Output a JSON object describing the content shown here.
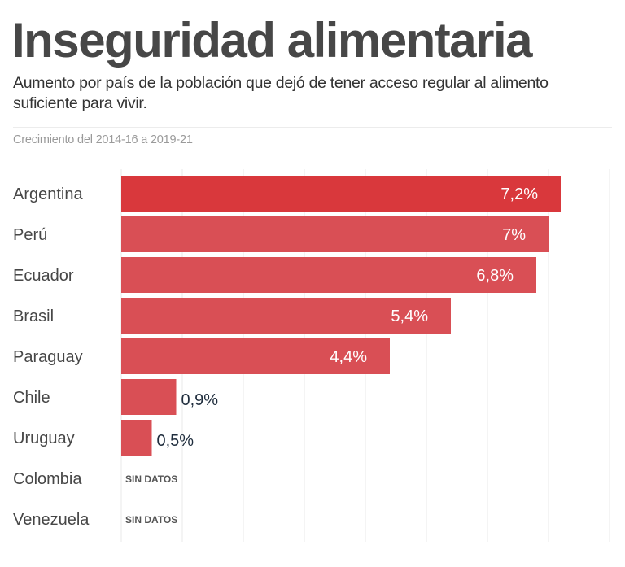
{
  "header": {
    "title": "Inseguridad alimentaria",
    "description": "Aumento por país de la población que dejó de tener acceso regular al alimento suficiente para vivir.",
    "note": "Crecimiento del 2014-16 a 2019-21"
  },
  "colors": {
    "highlight_bar": "#d9383c",
    "bar": "#d94f55",
    "value_inside": "#ffffff",
    "value_outside": "#1f2d3d",
    "gridline": "#f0f0f0"
  },
  "chart_data": {
    "type": "bar",
    "orientation": "horizontal",
    "title": "Inseguridad alimentaria",
    "subtitle": "Crecimiento del 2014-16 a 2019-21",
    "xlabel": "",
    "ylabel": "",
    "xlim": [
      0,
      8
    ],
    "grid": true,
    "grid_step": 1,
    "unit": "%",
    "categories": [
      "Argentina",
      "Perú",
      "Ecuador",
      "Brasil",
      "Paraguay",
      "Chile",
      "Uruguay",
      "Colombia",
      "Venezuela"
    ],
    "values": [
      7.2,
      7.0,
      6.8,
      5.4,
      4.4,
      0.9,
      0.5,
      null,
      null
    ],
    "data_labels": [
      "7,2%",
      "7%",
      "6,8%",
      "5,4%",
      "4,4%",
      "0,9%",
      "0,5%",
      "SIN DATOS",
      "SIN DATOS"
    ],
    "highlighted": [
      "Argentina"
    ]
  }
}
